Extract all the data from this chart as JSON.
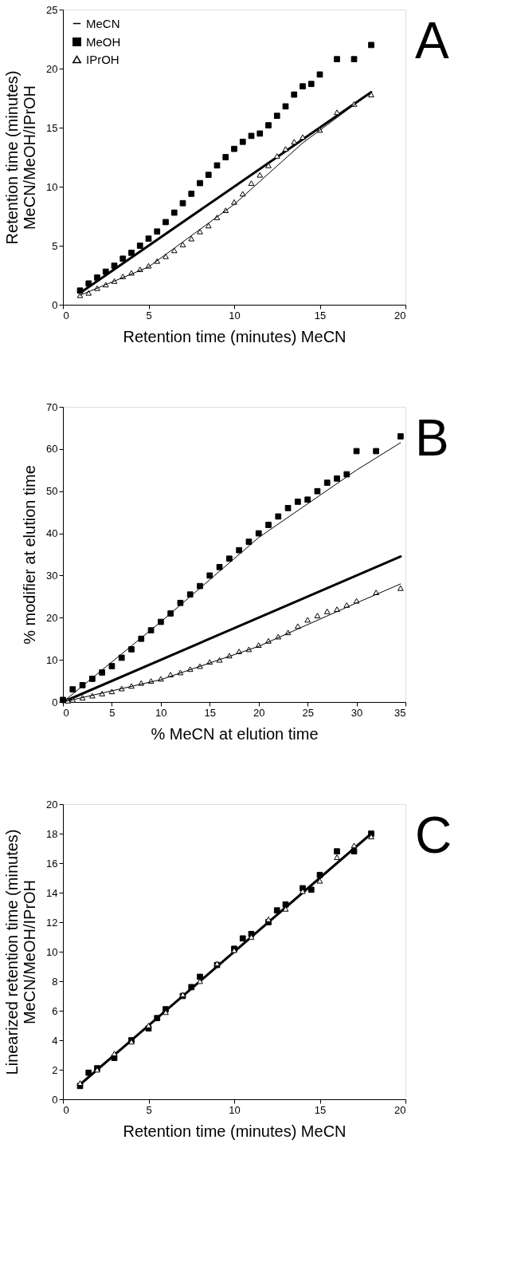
{
  "chart_data": [
    {
      "type": "scatter",
      "xlabel": "Retention time (minutes) MeCN",
      "ylabel": "Retention time (minutes)\nMeCN/MeOH/IPrOH",
      "annotations": [
        "A"
      ],
      "xlim": [
        0,
        20
      ],
      "ylim": [
        0,
        25
      ],
      "xticks": [
        0,
        5,
        10,
        15,
        20
      ],
      "yticks": [
        0,
        5,
        10,
        15,
        20,
        25
      ],
      "legend": "top left",
      "grid": false,
      "series": [
        {
          "name": "MeCN",
          "type": "line",
          "color": "#000000",
          "x": [
            1,
            18
          ],
          "values": [
            1,
            18
          ]
        },
        {
          "name": "MeOH",
          "type": "scatter",
          "marker": "square",
          "color": "#000000",
          "x": [
            1,
            1.5,
            2,
            2.5,
            3,
            3.5,
            4,
            4.5,
            5,
            5.5,
            6,
            6.5,
            7,
            7.5,
            8,
            8.5,
            9,
            9.5,
            10,
            10.5,
            11,
            11.5,
            12,
            12.5,
            13,
            13.5,
            14,
            14.5,
            15,
            16,
            17,
            18
          ],
          "values": [
            1.2,
            1.8,
            2.3,
            2.8,
            3.3,
            3.9,
            4.4,
            5.0,
            5.6,
            6.2,
            7.0,
            7.8,
            8.6,
            9.4,
            10.3,
            11.0,
            11.8,
            12.5,
            13.2,
            13.8,
            14.3,
            14.5,
            15.2,
            16.0,
            16.8,
            17.8,
            18.5,
            18.7,
            19.5,
            20.8,
            20.8,
            22
          ]
        },
        {
          "name": "IPrOH",
          "type": "scatter",
          "marker": "triangle",
          "color": "#000000",
          "x": [
            1,
            1.5,
            2,
            2.5,
            3,
            3.5,
            4,
            4.5,
            5,
            5.5,
            6,
            6.5,
            7,
            7.5,
            8,
            8.5,
            9,
            9.5,
            10,
            10.5,
            11,
            11.5,
            12,
            12.5,
            13,
            13.5,
            14,
            15,
            16,
            17,
            18
          ],
          "values": [
            0.8,
            1.0,
            1.4,
            1.7,
            2.0,
            2.4,
            2.7,
            3.0,
            3.3,
            3.7,
            4.1,
            4.6,
            5.1,
            5.6,
            6.2,
            6.7,
            7.4,
            8.0,
            8.7,
            9.4,
            10.3,
            11.0,
            11.8,
            12.6,
            13.2,
            13.8,
            14.2,
            14.8,
            16.3,
            17.0,
            17.8
          ]
        },
        {
          "type": "line",
          "color": "#000000",
          "x": [
            1,
            5,
            10,
            14,
            18
          ],
          "values": [
            0.8,
            3.2,
            8.5,
            13.7,
            18
          ]
        }
      ]
    },
    {
      "type": "scatter",
      "xlabel": "% MeCN at elution time",
      "ylabel": "% modifier at elution time",
      "annotations": [
        "B"
      ],
      "xlim": [
        0,
        35
      ],
      "ylim": [
        0,
        70
      ],
      "xticks": [
        0,
        5,
        10,
        15,
        20,
        25,
        30,
        35
      ],
      "yticks": [
        0,
        10,
        20,
        30,
        40,
        50,
        60,
        70
      ],
      "legend": "top left",
      "grid": false,
      "series": [
        {
          "name": "MeCN",
          "type": "line",
          "color": "#000000",
          "x": [
            0,
            34.5
          ],
          "values": [
            0,
            34.5
          ]
        },
        {
          "name": "MeOH",
          "type": "scatter",
          "marker": "square",
          "color": "#000000",
          "x": [
            0,
            1,
            2,
            3,
            4,
            5,
            6,
            7,
            8,
            9,
            10,
            11,
            12,
            13,
            14,
            15,
            16,
            17,
            18,
            19,
            20,
            21,
            22,
            23,
            24,
            25,
            26,
            27,
            28,
            29,
            30,
            32,
            34.5
          ],
          "values": [
            0.5,
            3,
            4,
            5.5,
            7,
            8.5,
            10.5,
            12.5,
            15,
            17,
            19,
            21,
            23.5,
            25.5,
            27.5,
            30,
            32,
            34,
            36,
            38,
            40,
            42,
            44,
            46,
            47.5,
            48,
            50,
            52,
            53,
            54,
            59.5,
            59.5,
            63
          ]
        },
        {
          "name": "IPrOH",
          "type": "scatter",
          "marker": "triangle",
          "color": "#000000",
          "x": [
            0.5,
            1,
            2,
            3,
            4,
            5,
            6,
            7,
            8,
            9,
            10,
            11,
            12,
            13,
            14,
            15,
            16,
            17,
            18,
            19,
            20,
            21,
            22,
            23,
            24,
            25,
            26,
            27,
            28,
            29,
            30,
            32,
            34.5
          ],
          "values": [
            0.3,
            0.5,
            1,
            1.5,
            2,
            2.5,
            3.2,
            3.8,
            4.5,
            5,
            5.5,
            6.5,
            7,
            7.8,
            8.5,
            9.5,
            10,
            11,
            12,
            12.5,
            13.5,
            14.5,
            15.5,
            16.5,
            18,
            19.5,
            20.5,
            21.5,
            22,
            23,
            24,
            26,
            27
          ]
        },
        {
          "type": "line",
          "color": "#000000",
          "x": [
            0,
            10,
            20,
            30,
            34.5
          ],
          "values": [
            0,
            19,
            39,
            55,
            61.5
          ]
        },
        {
          "type": "line",
          "color": "#000000",
          "x": [
            0,
            10,
            20,
            30,
            34.5
          ],
          "values": [
            0,
            5.3,
            13.2,
            23.5,
            28
          ]
        }
      ]
    },
    {
      "type": "scatter",
      "xlabel": "Retention time (minutes) MeCN",
      "ylabel": "Linearized retention time (minutes)\nMeCN/MeOH/IPrOH",
      "annotations": [
        "C"
      ],
      "xlim": [
        0,
        20
      ],
      "ylim": [
        0,
        20
      ],
      "xticks": [
        0,
        5,
        10,
        15,
        20
      ],
      "yticks": [
        0,
        2,
        4,
        6,
        8,
        10,
        12,
        14,
        16,
        18,
        20
      ],
      "legend": "top left",
      "grid": false,
      "series": [
        {
          "name": "MeCN",
          "type": "line",
          "color": "#000000",
          "x": [
            1,
            18
          ],
          "values": [
            1,
            18
          ]
        },
        {
          "name": "MeOH",
          "type": "scatter",
          "marker": "square",
          "color": "#000000",
          "x": [
            1,
            1.5,
            2,
            3,
            4,
            5,
            5.5,
            6,
            7,
            7.5,
            8,
            9,
            10,
            10.5,
            11,
            12,
            12.5,
            13,
            14,
            14.5,
            15,
            16,
            17,
            18
          ],
          "values": [
            0.9,
            1.8,
            2.1,
            2.8,
            4.0,
            4.8,
            5.5,
            6.1,
            7.0,
            7.6,
            8.3,
            9.1,
            10.2,
            10.9,
            11.2,
            12.0,
            12.8,
            13.2,
            14.3,
            14.2,
            15.2,
            16.8,
            16.8,
            18
          ]
        },
        {
          "name": "IPrOH",
          "type": "scatter",
          "marker": "triangle",
          "color": "#000000",
          "x": [
            1,
            2,
            3,
            4,
            5,
            6,
            7,
            8,
            9,
            10,
            11,
            12,
            13,
            14,
            15,
            16,
            17,
            18
          ],
          "values": [
            1.1,
            2.0,
            3.1,
            3.9,
            5.0,
            5.9,
            7.1,
            8.0,
            9.2,
            10.1,
            11.0,
            12.2,
            12.9,
            14.1,
            14.8,
            16.4,
            17.2,
            17.8
          ]
        }
      ]
    }
  ]
}
